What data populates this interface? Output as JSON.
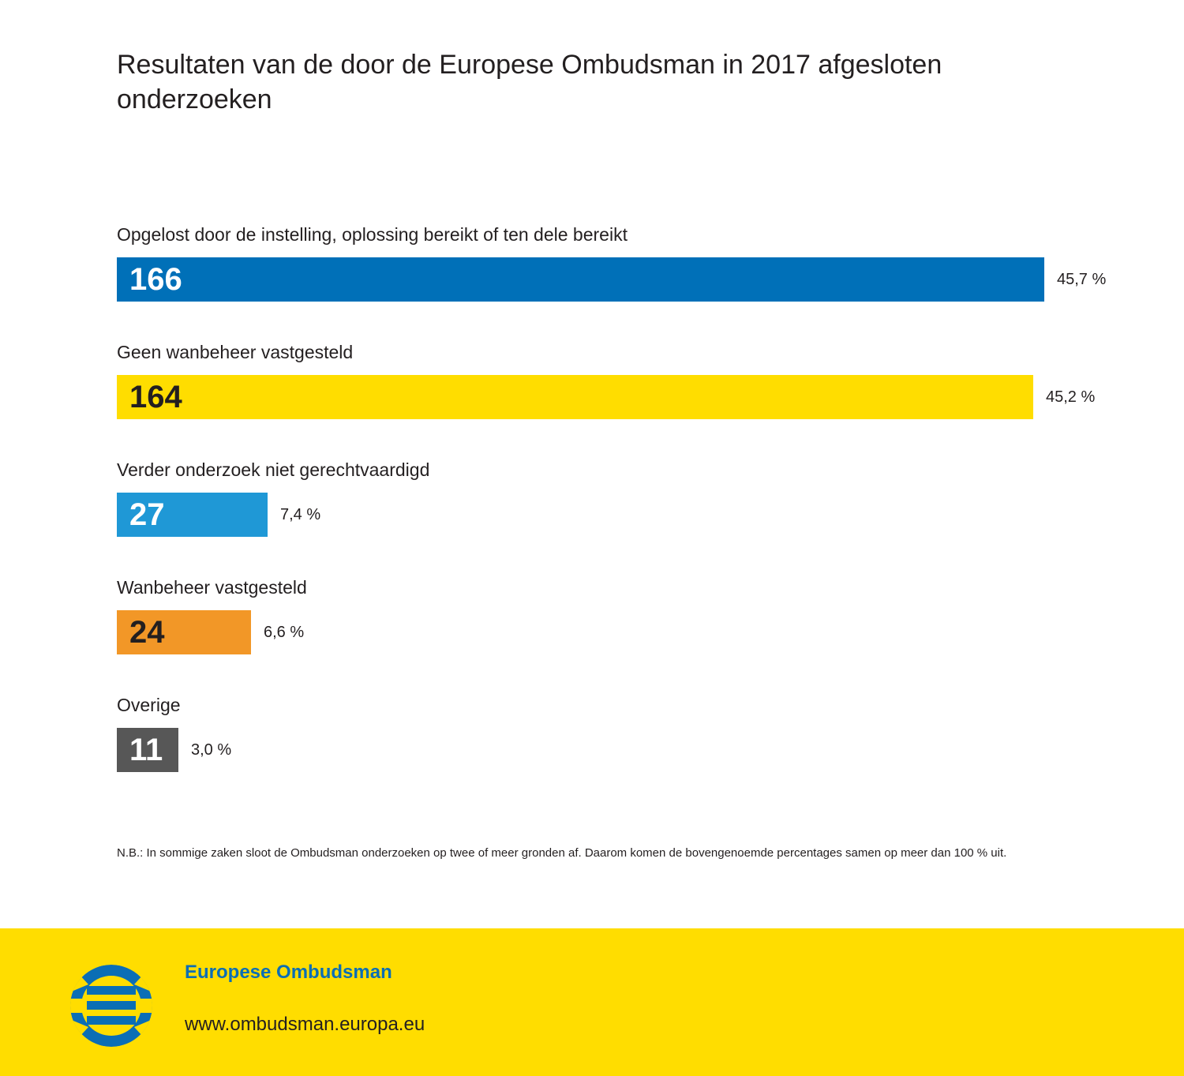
{
  "chart_data": {
    "type": "bar",
    "orientation": "horizontal",
    "title": "Resultaten van de door de Europese Ombudsman in 2017 afgesloten onderzoeken",
    "categories": [
      "Opgelost door de instelling, oplossing bereikt of ten dele bereikt",
      "Geen wanbeheer vastgesteld",
      "Verder onderzoek niet gerechtvaardigd",
      "Wanbeheer vastgesteld",
      "Overige"
    ],
    "values": [
      166,
      164,
      27,
      24,
      11
    ],
    "percent_labels": [
      "45,7 %",
      "45,2 %",
      "7,4 %",
      "6,6 %",
      "3,0 %"
    ],
    "colors": [
      "#0070b8",
      "#ffdd00",
      "#1f98d6",
      "#f29727",
      "#575757"
    ],
    "value_text_colors": [
      "#ffffff",
      "#231f20",
      "#ffffff",
      "#231f20",
      "#ffffff"
    ],
    "xlim": [
      0,
      166
    ],
    "xlabel": "",
    "ylabel": "",
    "grid": false
  },
  "note": "N.B.: In sommige zaken sloot de Ombudsman onderzoeken op twee of meer gronden af. Daarom komen de bovengenoemde percentages samen op meer dan 100 % uit.",
  "footer": {
    "brand": "Europese Ombudsman",
    "url": "www.ombudsman.europa.eu",
    "logo_icon": "european-ombudsman-logo-icon",
    "brand_color": "#0b6eb5",
    "background_color": "#ffdd00"
  }
}
